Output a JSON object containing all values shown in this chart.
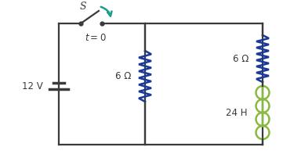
{
  "bg_color": "#ffffff",
  "line_color": "#3a3a3a",
  "resistor_color": "#1a3a9a",
  "inductor_color": "#8ab840",
  "arrow_color": "#1a9e8a",
  "text_color": "#3a3a3a",
  "components": {
    "battery_label": "12 V",
    "switch_label": "S",
    "time_label": "t = 0",
    "r1_label": "6 Ω",
    "r2_label": "6 Ω",
    "l_label": "24 H"
  },
  "figsize": [
    3.61,
    1.97
  ],
  "dpi": 100,
  "xlim": [
    0,
    361
  ],
  "ylim": [
    0,
    197
  ]
}
